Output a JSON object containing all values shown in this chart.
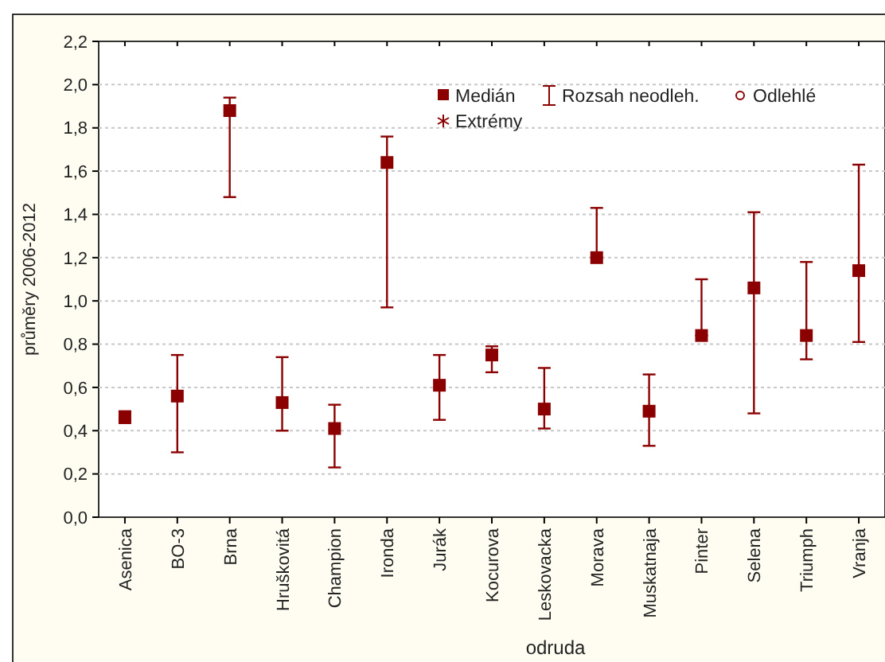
{
  "chart_data": {
    "type": "scatter",
    "xlabel": "odruda",
    "ylabel": "průměry 2006-2012",
    "categories": [
      "Asenica",
      "BO-3",
      "Brna",
      "Hruškovitá",
      "Champion",
      "Ironda",
      "Jurák",
      "Kocurova",
      "Leskovacka",
      "Morava",
      "Muskatnaja",
      "Pinter",
      "Selena",
      "Triumph",
      "Vranja"
    ],
    "series": [
      {
        "name": "Medián",
        "color": "#8b0000",
        "marker": "square",
        "values": [
          0.46,
          0.56,
          1.88,
          0.53,
          0.41,
          1.64,
          0.61,
          0.75,
          0.5,
          1.2,
          0.49,
          0.84,
          1.06,
          0.84,
          1.14
        ],
        "errors": [
          [
            0.45,
            0.49
          ],
          [
            0.3,
            0.75
          ],
          [
            1.48,
            1.94
          ],
          [
            0.4,
            0.74
          ],
          [
            0.23,
            0.52
          ],
          [
            0.97,
            1.76
          ],
          [
            0.45,
            0.75
          ],
          [
            0.67,
            0.79
          ],
          [
            0.41,
            0.69
          ],
          [
            1.2,
            1.43
          ],
          [
            0.33,
            0.66
          ],
          [
            0.84,
            1.1
          ],
          [
            0.48,
            1.41
          ],
          [
            0.73,
            1.18
          ],
          [
            0.81,
            1.63
          ]
        ]
      }
    ],
    "annotations": [
      "Rozsah neodleh.",
      "Odlehlé",
      "Extrémy"
    ],
    "ylim": [
      0,
      2.2
    ],
    "yticks": [
      {
        "value": 0,
        "label": "0,0"
      },
      {
        "value": 0.2,
        "label": "0,2"
      },
      {
        "value": 0.4,
        "label": "0,4"
      },
      {
        "value": 0.6,
        "label": "0,6"
      },
      {
        "value": 0.8,
        "label": "0,8"
      },
      {
        "value": 1,
        "label": "1,0"
      },
      {
        "value": 1.2,
        "label": "1,2"
      },
      {
        "value": 1.4,
        "label": "1,4"
      },
      {
        "value": 1.6,
        "label": "1,6"
      },
      {
        "value": 1.8,
        "label": "1,8"
      },
      {
        "value": 2,
        "label": "2,0"
      },
      {
        "value": 2.2,
        "label": "2,2"
      }
    ],
    "grid": "y",
    "legend": "top right"
  }
}
